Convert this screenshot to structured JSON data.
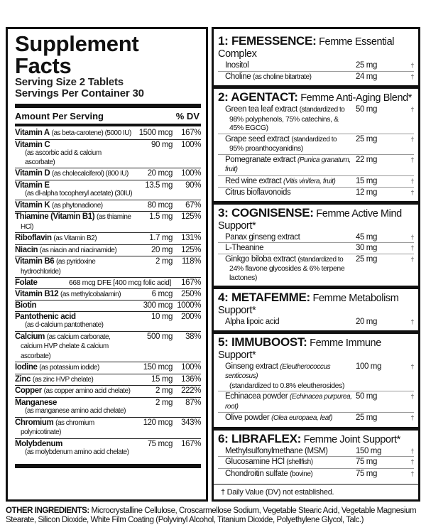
{
  "title": "Supplement Facts",
  "serving_size": "Serving Size 2 Tablets",
  "servings_per_container": "Servings Per Container 30",
  "header": {
    "amount": "Amount Per Serving",
    "dv": "% DV"
  },
  "nutrients": [
    {
      "name": "Vitamin A",
      "note": "(as beta-carotene) (5000 IU)",
      "amount": "1500 mcg",
      "dv": "167%"
    },
    {
      "name": "Vitamin C",
      "note": "(as ascorbic acid & calcium ascorbate)",
      "amount": "90 mg",
      "dv": "100%",
      "wrap": true
    },
    {
      "name": "Vitamin D",
      "note": "(as cholecalciferol) (800 IU)",
      "amount": "20 mcg",
      "dv": "100%"
    },
    {
      "name": "Vitamin E",
      "note": "(as dl-alpha tocopheryl acetate) (30IU)",
      "amount": "13.5 mg",
      "dv": "90%",
      "wrap": true
    },
    {
      "name": "Vitamin K",
      "note": "(as phytonadione)",
      "amount": "80 mcg",
      "dv": "67%"
    },
    {
      "name": "Thiamine (Vitamin B1)",
      "note": "(as thiamine HCl)",
      "amount": "1.5 mg",
      "dv": "125%"
    },
    {
      "name": "Riboflavin",
      "note": "(as Vitamin B2)",
      "amount": "1.7 mg",
      "dv": "131%"
    },
    {
      "name": "Niacin",
      "note": "(as niacin and niacinamide)",
      "amount": "20 mg",
      "dv": "125%"
    },
    {
      "name": "Vitamin B6",
      "note": "(as pyridoxine hydrochloride)",
      "amount": "2 mg",
      "dv": "118%"
    },
    {
      "name": "Folate",
      "note": "",
      "amount": "668 mcg DFE [400 mcg folic acid]",
      "dv": "167%",
      "wide": true
    },
    {
      "name": "Vitamin B12",
      "note": "(as methylcobalamin)",
      "amount": "6 mcg",
      "dv": "250%"
    },
    {
      "name": "Biotin",
      "note": "",
      "amount": "300 mcg",
      "dv": "1000%"
    },
    {
      "name": "Pantothenic acid",
      "note": "(as d-calcium pantothenate)",
      "amount": "10 mg",
      "dv": "200%",
      "wrap": true
    },
    {
      "name": "Calcium",
      "note": "(as calcium carbonate, calcium HVP chelate & calcium ascorbate)",
      "amount": "500 mg",
      "dv": "38%"
    },
    {
      "name": "Iodine",
      "note": "(as potassium iodide)",
      "amount": "150 mcg",
      "dv": "100%"
    },
    {
      "name": "Zinc",
      "note": "(as zinc HVP chelate)",
      "amount": "15 mg",
      "dv": "136%"
    },
    {
      "name": "Copper",
      "note": "(as copper amino acid chelate)",
      "amount": "2 mg",
      "dv": "222%"
    },
    {
      "name": "Manganese",
      "note": "(as manganese amino acid chelate)",
      "amount": "2 mg",
      "dv": "87%",
      "wrap": true
    },
    {
      "name": "Chromium",
      "note": "(as chromium polynicotinate)",
      "amount": "120 mcg",
      "dv": "343%"
    },
    {
      "name": "Molybdenum",
      "note": "(as molybdenum amino acid chelate)",
      "amount": "75 mcg",
      "dv": "167%",
      "wrap": true
    }
  ],
  "blends": [
    {
      "brand": "1: FEMESSENCE:",
      "subtitle": "Femme Essential Complex",
      "items": [
        {
          "name": "Inositol",
          "amount": "25 mg",
          "mark": "†"
        },
        {
          "name": "Choline",
          "note": "(as choline bitartrate)",
          "amount": "24 mg",
          "mark": "†"
        }
      ]
    },
    {
      "brand": "2: AGENTACT:",
      "subtitle": "Femme Anti-Aging Blend*",
      "items": [
        {
          "name": "Green tea leaf extract",
          "note": "(standardized to",
          "sub": "98% polyphenols, 75% catechins, & 45% EGCG)",
          "amount": "50 mg",
          "mark": "†"
        },
        {
          "name": "Grape seed extract",
          "note": "(standardized to",
          "sub": "95% proanthocyanidins)",
          "amount": "25 mg",
          "mark": "†"
        },
        {
          "name": "Pomegranate extract",
          "latin": "(Punica granatum, fruit)",
          "amount": "22 mg",
          "mark": "†"
        },
        {
          "name": "Red wine extract",
          "latin": "(Vitis vinifera, fruit)",
          "amount": "15 mg",
          "mark": "†"
        },
        {
          "name": "Citrus bioflavonoids",
          "amount": "12 mg",
          "mark": "†"
        }
      ]
    },
    {
      "brand": "3: COGNISENSE:",
      "subtitle": "Femme Active Mind Support*",
      "items": [
        {
          "name": "Panax ginseng extract",
          "amount": "45 mg",
          "mark": "†"
        },
        {
          "name": "L-Theanine",
          "amount": "30 mg",
          "mark": "†"
        },
        {
          "name": "Ginkgo biloba extract",
          "note": "(standardized to",
          "sub": "24% flavone glycosides & 6% terpene lactones)",
          "amount": "25 mg",
          "mark": "†"
        }
      ]
    },
    {
      "brand": "4: METAFEMME:",
      "subtitle": "Femme Metabolism Support*",
      "items": [
        {
          "name": "Alpha lipoic acid",
          "amount": "20 mg",
          "mark": "†"
        }
      ]
    },
    {
      "brand": "5: IMMUBOOST:",
      "subtitle": "Femme Immune Support*",
      "items": [
        {
          "name": "Ginseng extract",
          "latin": "(Eleutherococcus senticosus)",
          "sub": "(standardized to 0.8% eleutherosides)",
          "amount": "100 mg",
          "mark": "†"
        },
        {
          "name": "Echinacea powder",
          "latin": "(Echinacea purpurea, root)",
          "amount": "50 mg",
          "mark": "†"
        },
        {
          "name": "Olive powder",
          "latin": "(Olea europaea, leaf)",
          "amount": "25 mg",
          "mark": "†"
        }
      ]
    },
    {
      "brand": "6: LIBRAFLEX:",
      "subtitle": "Femme Joint Support*",
      "items": [
        {
          "name": "Methylsulfonylmethane (MSM)",
          "amount": "150 mg",
          "mark": "†"
        },
        {
          "name": "Glucosamine HCl",
          "note": "(shellfish)",
          "amount": "75 mg",
          "mark": "†"
        },
        {
          "name": "Chondroitin sulfate",
          "note": "(bovine)",
          "amount": "75 mg",
          "mark": "†"
        }
      ]
    }
  ],
  "footnote": "† Daily Value (DV) not established.",
  "other_ingredients": {
    "label": "OTHER INGREDIENTS:",
    "text": "Microcrystalline Cellulose, Croscarmellose Sodium, Vegetable Stearic Acid, Vegetable Magnesium Stearate, Silicon Dioxide, White Film Coating (Polyvinyl Alcohol, Titanium Dioxide, Polyethylene Glycol, Talc.)"
  }
}
